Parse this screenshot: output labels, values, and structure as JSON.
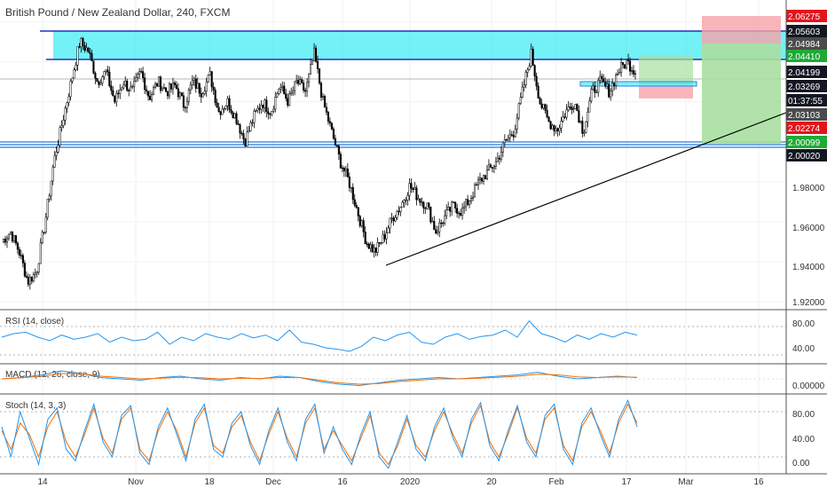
{
  "header": {
    "title": "British Pound / New Zealand Dollar, 240, FXCM"
  },
  "colors": {
    "bull": "#000000",
    "bear": "#000000",
    "zone": "#00e5f0",
    "zone_border": "#1f33b8",
    "support_line": "#4a90e2",
    "tp_fill": "#a8dfa0",
    "sl_fill": "#f7a3a8",
    "rsi": "#2196f3",
    "macd": "#2196f3",
    "signal": "#ff6d00",
    "stoch_k": "#2196f3",
    "stoch_d": "#ff6d00",
    "label_red": "#e3151b",
    "label_green": "#1faa35",
    "label_dark": "#131722",
    "label_gray": "#4b4b4b"
  },
  "chart_data": {
    "type": "candlestick",
    "symbol": "British Pound / New Zealand Dollar",
    "interval": "240",
    "source": "FXCM",
    "xlabel": "",
    "ylabel": "",
    "x_ticks": [
      "14",
      "Nov",
      "18",
      "Dec",
      "16",
      "2020",
      "20",
      "Feb",
      "17",
      "Mar",
      "16"
    ],
    "y_ticks": [
      "1.92000",
      "1.94000",
      "1.96000",
      "1.98000"
    ],
    "ylim": [
      1.92,
      2.065
    ],
    "price_path": [
      1.95,
      1.955,
      1.945,
      1.93,
      1.935,
      1.96,
      1.99,
      2.01,
      2.03,
      2.05,
      2.045,
      2.03,
      2.035,
      2.02,
      2.03,
      2.025,
      2.035,
      2.022,
      2.03,
      2.025,
      2.028,
      2.018,
      2.03,
      2.025,
      2.033,
      2.015,
      2.02,
      2.012,
      2.0,
      2.012,
      2.02,
      2.015,
      2.028,
      2.02,
      2.03,
      2.025,
      2.044,
      2.02,
      2.005,
      1.99,
      1.98,
      1.965,
      1.95,
      1.945,
      1.952,
      1.962,
      1.968,
      1.978,
      1.972,
      1.968,
      1.955,
      1.962,
      1.968,
      1.965,
      1.972,
      1.98,
      1.985,
      1.99,
      2.0,
      2.005,
      2.025,
      2.044,
      2.02,
      2.01,
      2.006,
      2.015,
      2.02,
      2.005,
      2.025,
      2.03,
      2.025,
      2.035,
      2.04,
      2.035
    ],
    "resistance_zone": [
      2.0441,
      2.05603
    ],
    "support_zone": [
      2.0002,
      2.00099
    ],
    "trendline": [
      [
        1.94,
        "start"
      ],
      [
        2.031,
        "end"
      ]
    ],
    "position": {
      "type": "short",
      "entry": 2.03269,
      "stop": 2.04984,
      "stop_top": 2.06275,
      "target": 2.00099
    },
    "price_labels": [
      {
        "value": "2.06275",
        "style": "red"
      },
      {
        "value": "2.05603",
        "style": "dark"
      },
      {
        "value": "2.04984",
        "style": "gray"
      },
      {
        "value": "2.04410",
        "style": "green"
      },
      {
        "value": "2.04199",
        "style": "dark"
      },
      {
        "value": "2.03269",
        "style": "dark"
      },
      {
        "value": "01:37:55",
        "style": "dark"
      },
      {
        "value": "2.03103",
        "style": "gray"
      },
      {
        "value": "2.02274",
        "style": "red"
      },
      {
        "value": "2.00099",
        "style": "green"
      },
      {
        "value": "2.00020",
        "style": "dark"
      }
    ],
    "indicators": [
      {
        "name": "RSI (14, close)",
        "y_ticks": [
          "80.00",
          "40.00"
        ],
        "levels": [
          70,
          30
        ],
        "ylim": [
          20,
          90
        ],
        "values": [
          55,
          60,
          62,
          55,
          50,
          58,
          52,
          55,
          60,
          48,
          55,
          50,
          52,
          62,
          45,
          55,
          50,
          60,
          55,
          52,
          60,
          54,
          58,
          50,
          65,
          48,
          45,
          40,
          38,
          35,
          42,
          55,
          50,
          58,
          62,
          48,
          45,
          55,
          60,
          52,
          56,
          58,
          65,
          55,
          78,
          60,
          55,
          48,
          58,
          52,
          60,
          55,
          62,
          58
        ]
      },
      {
        "name": "MACD (12, 26, close, 9)",
        "y_ticks": [
          "0.00000"
        ],
        "ylim": [
          -0.01,
          0.01
        ],
        "macd": [
          0,
          0.001,
          0.003,
          0.006,
          0.004,
          0.001,
          0,
          -0.001,
          0.001,
          0.002,
          0,
          -0.001,
          0.001,
          0,
          0.002,
          0.001,
          -0.002,
          -0.004,
          -0.005,
          -0.003,
          -0.001,
          0,
          0.001,
          0,
          0.001,
          0.002,
          0.003,
          0.005,
          0.002,
          0,
          0.001,
          0.002,
          0.001
        ],
        "signal": [
          0,
          0.0008,
          0.002,
          0.004,
          0.004,
          0.002,
          0.001,
          0,
          0.0005,
          0.0012,
          0.0008,
          0,
          0.0005,
          0.0003,
          0.001,
          0.001,
          -0.001,
          -0.003,
          -0.004,
          -0.0035,
          -0.002,
          -0.001,
          0,
          0,
          0.0005,
          0.0012,
          0.002,
          0.0035,
          0.003,
          0.0015,
          0.001,
          0.0015,
          0.0012
        ]
      },
      {
        "name": "Stoch (14, 3, 3)",
        "y_ticks": [
          "80.00",
          "40.00",
          "0.00"
        ],
        "levels": [
          80,
          20
        ],
        "ylim": [
          0,
          100
        ],
        "k": [
          60,
          20,
          80,
          45,
          10,
          70,
          85,
          30,
          15,
          55,
          90,
          40,
          20,
          75,
          88,
          25,
          10,
          60,
          85,
          50,
          15,
          70,
          90,
          30,
          20,
          65,
          80,
          35,
          10,
          55,
          85,
          40,
          15,
          70,
          90,
          25,
          60,
          30,
          10,
          50,
          80,
          20,
          5,
          40,
          75,
          30,
          15,
          60,
          85,
          45,
          20,
          70,
          92,
          35,
          15,
          55,
          88,
          40,
          20,
          75,
          90,
          30,
          10,
          65,
          85,
          50,
          20,
          70,
          95,
          60
        ],
        "d": [
          55,
          30,
          65,
          50,
          20,
          60,
          80,
          40,
          20,
          50,
          85,
          45,
          25,
          70,
          85,
          30,
          15,
          55,
          80,
          55,
          20,
          65,
          85,
          35,
          25,
          60,
          75,
          40,
          15,
          50,
          80,
          45,
          20,
          65,
          85,
          30,
          55,
          35,
          15,
          45,
          75,
          25,
          10,
          35,
          70,
          35,
          20,
          55,
          80,
          50,
          25,
          65,
          88,
          40,
          20,
          50,
          85,
          45,
          25,
          70,
          85,
          35,
          15,
          60,
          80,
          55,
          25,
          65,
          90,
          65
        ]
      }
    ]
  }
}
